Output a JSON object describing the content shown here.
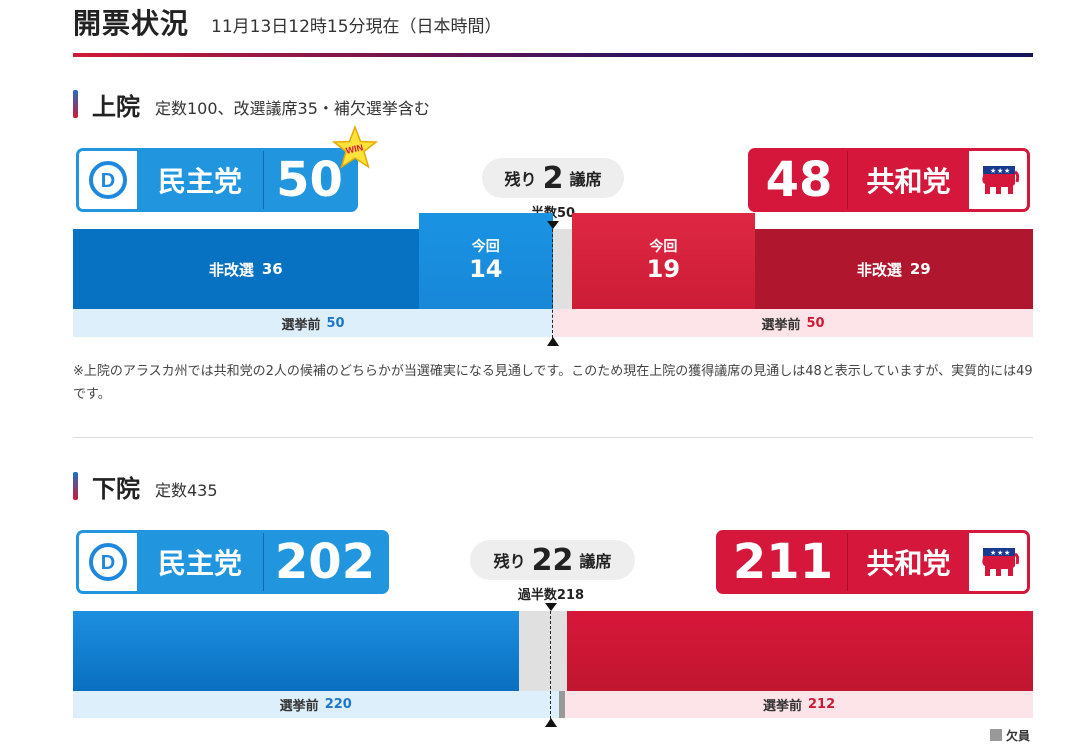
{
  "header": {
    "title": "開票状況",
    "timestamp": "11月13日12時15分現在（日本時間）"
  },
  "senate": {
    "title": "上院",
    "subtitle": "定数100、改選議席35・補欠選挙含む",
    "dem": {
      "name": "民主党",
      "seats": "50",
      "win_badge": "WIN",
      "logo_icon": "democrat-donkey-d-icon"
    },
    "rep": {
      "name": "共和党",
      "seats": "48",
      "logo_icon": "republican-elephant-icon"
    },
    "remaining": {
      "label": "残り",
      "count": "2",
      "unit": "議席"
    },
    "majority_label": "半数50",
    "bar": {
      "total": 100,
      "dem_not_up": {
        "label": "非改選",
        "value": "36"
      },
      "dem_this": {
        "label": "今回",
        "value": "14"
      },
      "undecided": 2,
      "rep_this": {
        "label": "今回",
        "value": "19"
      },
      "rep_not_up": {
        "label": "非改選",
        "value": "29"
      }
    },
    "before": {
      "dem_label": "選挙前",
      "dem_value": "50",
      "rep_label": "選挙前",
      "rep_value": "50"
    },
    "note": "※上院のアラスカ州では共和党の2人の候補のどちらかが当選確実になる見通しです。このため現在上院の獲得議席の見通しは48と表示していますが、実質的には49です。"
  },
  "house": {
    "title": "下院",
    "subtitle": "定数435",
    "dem": {
      "name": "民主党",
      "seats": "202",
      "logo_icon": "democrat-donkey-d-icon"
    },
    "rep": {
      "name": "共和党",
      "seats": "211",
      "logo_icon": "republican-elephant-icon"
    },
    "remaining": {
      "label": "残り",
      "count": "22",
      "unit": "議席"
    },
    "majority_label": "過半数218",
    "bar": {
      "total": 435,
      "dem": 202,
      "undecided": 22,
      "rep": 211
    },
    "before": {
      "dem_label": "選挙前",
      "dem_value": "220",
      "rep_label": "選挙前",
      "rep_value": "212",
      "vacant": 3
    },
    "legend_vacant": "欠員"
  },
  "colors": {
    "dem_dark": "#0771c2",
    "dem_light": "#1a93e3",
    "rep_light": "#df2843",
    "rep_dark": "#b0162e",
    "undecided": "#e0e0e0",
    "dem_prev_bg": "#ddeffb",
    "rep_prev_bg": "#fde4e8",
    "vacant": "#999999"
  }
}
